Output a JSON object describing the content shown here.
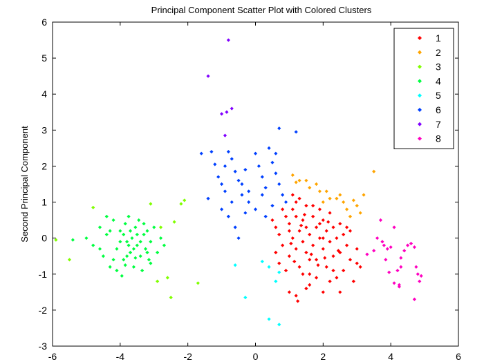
{
  "chart_data": {
    "type": "scatter",
    "title": "Principal Component Scatter Plot with Colored Clusters",
    "xlabel": "",
    "ylabel": "Second Principal Component",
    "xlim": [
      -6,
      6
    ],
    "ylim": [
      -3,
      6
    ],
    "xticks": [
      "-6",
      "-4",
      "-2",
      "0",
      "2",
      "4",
      "6"
    ],
    "yticks": [
      "-3",
      "-2",
      "-1",
      "0",
      "1",
      "2",
      "3",
      "4",
      "5",
      "6"
    ],
    "grid": false,
    "legend_position": "top-right",
    "series": [
      {
        "name": "1",
        "color": "#ff0000",
        "points": [
          [
            0.5,
            0.5
          ],
          [
            0.6,
            0.3
          ],
          [
            0.7,
            0.1
          ],
          [
            0.8,
            -0.2
          ],
          [
            0.9,
            0.6
          ],
          [
            1.0,
            0.4
          ],
          [
            1.0,
            -0.5
          ],
          [
            1.1,
            0.8
          ],
          [
            1.1,
            0.0
          ],
          [
            1.2,
            -0.3
          ],
          [
            1.2,
            1.0
          ],
          [
            1.3,
            0.2
          ],
          [
            1.3,
            -0.8
          ],
          [
            1.4,
            0.5
          ],
          [
            1.4,
            -0.1
          ],
          [
            1.5,
            0.9
          ],
          [
            1.5,
            -0.4
          ],
          [
            1.6,
            0.1
          ],
          [
            1.6,
            -1.0
          ],
          [
            1.7,
            0.6
          ],
          [
            1.7,
            -0.2
          ],
          [
            1.8,
            0.3
          ],
          [
            1.8,
            -0.6
          ],
          [
            1.9,
            0.0
          ],
          [
            1.9,
            0.8
          ],
          [
            2.0,
            -0.3
          ],
          [
            2.0,
            0.5
          ],
          [
            2.1,
            -0.8
          ],
          [
            2.1,
            0.2
          ],
          [
            2.2,
            -0.1
          ],
          [
            2.2,
            0.7
          ],
          [
            2.3,
            -0.5
          ],
          [
            2.3,
            0.3
          ],
          [
            2.4,
            -1.1
          ],
          [
            2.4,
            0.0
          ],
          [
            2.5,
            0.4
          ],
          [
            2.5,
            -0.4
          ],
          [
            2.6,
            -0.9
          ],
          [
            2.6,
            0.1
          ],
          [
            2.7,
            -0.2
          ],
          [
            2.8,
            -0.6
          ],
          [
            2.8,
            0.2
          ],
          [
            2.9,
            -1.2
          ],
          [
            3.0,
            -0.3
          ],
          [
            3.1,
            -0.8
          ],
          [
            1.0,
            -1.5
          ],
          [
            1.2,
            -1.6
          ],
          [
            1.5,
            -1.4
          ],
          [
            2.0,
            -1.5
          ],
          [
            2.5,
            -1.5
          ],
          [
            0.9,
            -0.9
          ],
          [
            1.6,
            -1.3
          ],
          [
            2.2,
            -1.2
          ],
          [
            1.4,
            -1.0
          ],
          [
            1.8,
            -1.1
          ],
          [
            0.8,
            0.8
          ],
          [
            1.1,
            1.2
          ],
          [
            1.3,
            1.1
          ],
          [
            1.7,
            0.9
          ],
          [
            1.9,
            0.4
          ],
          [
            0.6,
            -0.4
          ],
          [
            0.7,
            -0.7
          ],
          [
            1.0,
            0.2
          ],
          [
            1.2,
            0.6
          ],
          [
            1.5,
            0.3
          ],
          [
            1.6,
            -0.6
          ],
          [
            2.0,
            0.0
          ],
          [
            2.3,
            -0.9
          ],
          [
            2.7,
            0.3
          ],
          [
            3.0,
            -0.7
          ],
          [
            1.25,
            -1.75
          ],
          [
            1.05,
            -0.15
          ],
          [
            1.35,
            0.35
          ],
          [
            1.65,
            -0.45
          ],
          [
            2.15,
            0.45
          ],
          [
            2.45,
            -0.35
          ],
          [
            1.85,
            -0.75
          ],
          [
            1.45,
            0.65
          ],
          [
            2.05,
            -0.55
          ],
          [
            1.15,
            -0.65
          ]
        ]
      },
      {
        "name": "2",
        "color": "#ffa500",
        "points": [
          [
            1.1,
            1.75
          ],
          [
            1.2,
            1.55
          ],
          [
            1.5,
            1.6
          ],
          [
            1.6,
            1.4
          ],
          [
            1.8,
            1.5
          ],
          [
            1.9,
            1.3
          ],
          [
            2.1,
            1.3
          ],
          [
            2.2,
            1.1
          ],
          [
            2.5,
            1.2
          ],
          [
            2.6,
            1.0
          ],
          [
            3.0,
            0.9
          ],
          [
            3.2,
            1.2
          ],
          [
            2.8,
            0.6
          ],
          [
            3.5,
            1.85
          ],
          [
            2.0,
            1.0
          ],
          [
            2.4,
            1.1
          ],
          [
            2.7,
            0.8
          ],
          [
            3.1,
            0.7
          ],
          [
            1.3,
            1.6
          ],
          [
            2.9,
            1.05
          ]
        ]
      },
      {
        "name": "3",
        "color": "#80ff00",
        "points": [
          [
            -4.8,
            0.85
          ],
          [
            -3.1,
            0.95
          ],
          [
            -2.1,
            1.05
          ],
          [
            -2.4,
            0.45
          ],
          [
            -2.6,
            -1.1
          ],
          [
            -2.5,
            -1.65
          ],
          [
            -2.9,
            -1.2
          ],
          [
            -1.7,
            -1.25
          ],
          [
            -2.2,
            0.95
          ],
          [
            -2.8,
            0.3
          ],
          [
            -5.9,
            -0.05
          ],
          [
            -5.5,
            -0.6
          ]
        ]
      },
      {
        "name": "4",
        "color": "#00ff40",
        "points": [
          [
            -5.4,
            -0.05
          ],
          [
            -5.0,
            0.0
          ],
          [
            -4.8,
            -0.2
          ],
          [
            -4.6,
            0.3
          ],
          [
            -4.5,
            -0.5
          ],
          [
            -4.4,
            0.1
          ],
          [
            -4.3,
            -0.8
          ],
          [
            -4.2,
            0.5
          ],
          [
            -4.1,
            -0.3
          ],
          [
            -4.0,
            0.2
          ],
          [
            -3.95,
            -1.05
          ],
          [
            -3.9,
            -0.6
          ],
          [
            -3.85,
            0.4
          ],
          [
            -3.8,
            -0.1
          ],
          [
            -3.75,
            0.6
          ],
          [
            -3.7,
            -0.4
          ],
          [
            -3.65,
            0.0
          ],
          [
            -3.6,
            -0.8
          ],
          [
            -3.55,
            0.3
          ],
          [
            -3.5,
            -0.2
          ],
          [
            -3.45,
            0.5
          ],
          [
            -3.4,
            -0.5
          ],
          [
            -3.35,
            -0.9
          ],
          [
            -3.3,
            0.1
          ],
          [
            -3.25,
            -0.3
          ],
          [
            -3.2,
            0.2
          ],
          [
            -3.15,
            -0.6
          ],
          [
            -3.1,
            -0.1
          ],
          [
            -3.0,
            0.3
          ],
          [
            -2.9,
            -0.4
          ],
          [
            -2.8,
            0.0
          ],
          [
            -2.7,
            -0.2
          ],
          [
            -4.4,
            0.6
          ],
          [
            -4.2,
            -0.6
          ],
          [
            -3.9,
            0.1
          ],
          [
            -3.7,
            0.2
          ],
          [
            -3.6,
            -0.3
          ],
          [
            -3.4,
            -0.1
          ],
          [
            -3.3,
            0.4
          ],
          [
            -3.1,
            -0.7
          ],
          [
            -4.6,
            -0.3
          ],
          [
            -4.1,
            -0.9
          ],
          [
            -3.8,
            -0.5
          ],
          [
            -3.5,
            0.1
          ],
          [
            -3.2,
            -0.4
          ],
          [
            -4.0,
            -0.1
          ],
          [
            -3.75,
            -0.2
          ],
          [
            -3.55,
            -0.55
          ],
          [
            -3.85,
            -0.75
          ],
          [
            -4.3,
            0.2
          ]
        ]
      },
      {
        "name": "5",
        "color": "#00ffff",
        "points": [
          [
            -0.6,
            -0.75
          ],
          [
            0.2,
            -0.65
          ],
          [
            0.4,
            -0.8
          ],
          [
            0.6,
            -1.2
          ],
          [
            0.7,
            -0.95
          ],
          [
            -0.3,
            -1.65
          ],
          [
            0.4,
            -2.25
          ],
          [
            0.7,
            -2.4
          ]
        ]
      },
      {
        "name": "6",
        "color": "#0040ff",
        "points": [
          [
            -1.6,
            2.35
          ],
          [
            -1.3,
            2.4
          ],
          [
            -1.2,
            2.05
          ],
          [
            -1.1,
            1.7
          ],
          [
            -1.0,
            1.5
          ],
          [
            -0.9,
            1.3
          ],
          [
            -0.8,
            2.4
          ],
          [
            -0.7,
            2.2
          ],
          [
            -0.6,
            1.85
          ],
          [
            -0.5,
            1.6
          ],
          [
            -0.4,
            1.2
          ],
          [
            -0.3,
            1.9
          ],
          [
            -0.2,
            1.0
          ],
          [
            0.0,
            2.35
          ],
          [
            0.1,
            2.0
          ],
          [
            0.2,
            1.7
          ],
          [
            0.3,
            1.4
          ],
          [
            0.4,
            2.5
          ],
          [
            0.5,
            2.1
          ],
          [
            0.6,
            1.8
          ],
          [
            0.7,
            1.5
          ],
          [
            0.8,
            1.2
          ],
          [
            0.9,
            1.0
          ],
          [
            0.7,
            3.05
          ],
          [
            1.2,
            2.95
          ],
          [
            -1.4,
            1.1
          ],
          [
            -1.0,
            0.8
          ],
          [
            -0.8,
            0.6
          ],
          [
            -0.6,
            0.3
          ],
          [
            -0.5,
            0.0
          ],
          [
            -0.3,
            0.7
          ],
          [
            0.0,
            0.8
          ],
          [
            0.3,
            0.6
          ],
          [
            0.5,
            0.9
          ],
          [
            -0.7,
            1.0
          ],
          [
            -0.9,
            2.0
          ],
          [
            -0.4,
            1.5
          ],
          [
            0.2,
            1.2
          ],
          [
            0.6,
            2.35
          ],
          [
            -0.2,
            1.3
          ]
        ]
      },
      {
        "name": "7",
        "color": "#8000ff",
        "points": [
          [
            -1.4,
            4.5
          ],
          [
            -0.8,
            5.5
          ],
          [
            -1.0,
            3.45
          ],
          [
            -0.85,
            3.5
          ],
          [
            -0.7,
            3.6
          ],
          [
            -0.9,
            2.85
          ]
        ]
      },
      {
        "name": "8",
        "color": "#ff00c0",
        "points": [
          [
            3.3,
            -0.45
          ],
          [
            3.5,
            -0.35
          ],
          [
            3.6,
            0.0
          ],
          [
            3.7,
            0.5
          ],
          [
            3.75,
            -0.1
          ],
          [
            3.8,
            -0.2
          ],
          [
            3.85,
            -0.6
          ],
          [
            3.9,
            -0.3
          ],
          [
            4.0,
            -0.25
          ],
          [
            4.1,
            0.3
          ],
          [
            4.2,
            -0.9
          ],
          [
            4.25,
            -1.3
          ],
          [
            4.3,
            -0.8
          ],
          [
            4.4,
            -0.35
          ],
          [
            4.5,
            -0.2
          ],
          [
            4.6,
            -0.15
          ],
          [
            4.7,
            -0.25
          ],
          [
            4.75,
            -0.8
          ],
          [
            4.8,
            -1.0
          ],
          [
            4.85,
            -1.2
          ],
          [
            4.9,
            -1.05
          ],
          [
            4.7,
            -1.7
          ],
          [
            4.1,
            -1.25
          ],
          [
            4.25,
            -1.35
          ],
          [
            3.95,
            -0.95
          ],
          [
            4.3,
            -0.55
          ]
        ]
      }
    ]
  }
}
